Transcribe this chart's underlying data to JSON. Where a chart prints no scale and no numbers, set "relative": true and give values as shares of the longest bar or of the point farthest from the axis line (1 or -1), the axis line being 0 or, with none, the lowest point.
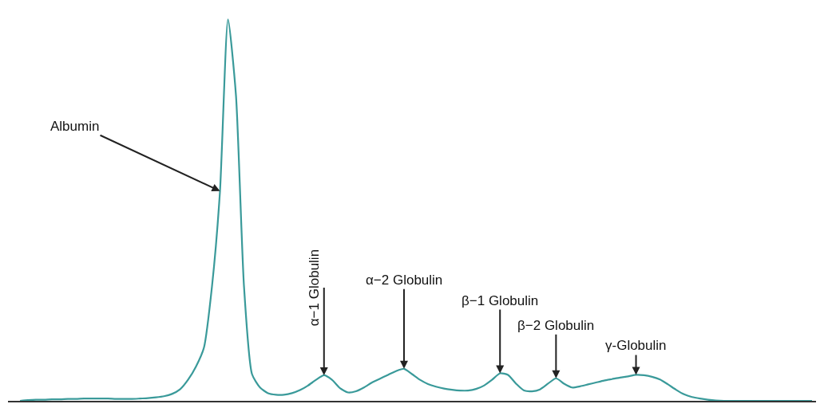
{
  "chart_data": {
    "type": "line",
    "relative": true,
    "categories": [
      null,
      null,
      null,
      null,
      null,
      null,
      null,
      null,
      null,
      null,
      null,
      null,
      null,
      null,
      null,
      null,
      null,
      null,
      null,
      null,
      null,
      null,
      null,
      null,
      null,
      null,
      null,
      null,
      null,
      null,
      null,
      null,
      null,
      null,
      null,
      null,
      null,
      null,
      null,
      null,
      null,
      null,
      null,
      null,
      null,
      null,
      null,
      null,
      null,
      null,
      null,
      null,
      null,
      null,
      null,
      null,
      null,
      null,
      null,
      null,
      null,
      null,
      null,
      null,
      null,
      null,
      null,
      null,
      null,
      null,
      null,
      null,
      null,
      null,
      null,
      null,
      null,
      null,
      null,
      null,
      null,
      null,
      null,
      null,
      null,
      null,
      null,
      null,
      null,
      null,
      null,
      null,
      null,
      null,
      null,
      null,
      null,
      null,
      null,
      null
    ],
    "series": [
      {
        "color": "#3a9a9a",
        "values": [
          0,
          0.002,
          0.003,
          0.003,
          0.004,
          0.004,
          0.005,
          0.005,
          0.006,
          0.006,
          0.006,
          0.006,
          0.005,
          0.005,
          0.005,
          0.006,
          0.007,
          0.009,
          0.012,
          0.018,
          0.03,
          0.055,
          0.09,
          0.14,
          0.3,
          0.55,
          1.0,
          0.8,
          0.3,
          0.07,
          0.035,
          0.02,
          0.016,
          0.016,
          0.02,
          0.028,
          0.04,
          0.055,
          0.067,
          0.055,
          0.033,
          0.022,
          0.025,
          0.035,
          0.048,
          0.058,
          0.068,
          0.078,
          0.084,
          0.07,
          0.055,
          0.044,
          0.037,
          0.032,
          0.029,
          0.027,
          0.027,
          0.031,
          0.04,
          0.055,
          0.072,
          0.068,
          0.045,
          0.027,
          0.025,
          0.03,
          0.045,
          0.059,
          0.045,
          0.035,
          0.038,
          0.043,
          0.048,
          0.053,
          0.057,
          0.061,
          0.064,
          0.068,
          0.067,
          0.063,
          0.056,
          0.043,
          0.029,
          0.017,
          0.01,
          0.006,
          0.003,
          0.001,
          0,
          0,
          0,
          0,
          0,
          0,
          0,
          0,
          0,
          0,
          0,
          0
        ]
      }
    ],
    "annotations": [
      "Albumin",
      "α−1 Globulin",
      "α−2 Globulin",
      "β−1 Globulin",
      "β−2 Globulin",
      "γ-Globulin"
    ],
    "marker": "none",
    "line_style": "solid"
  }
}
